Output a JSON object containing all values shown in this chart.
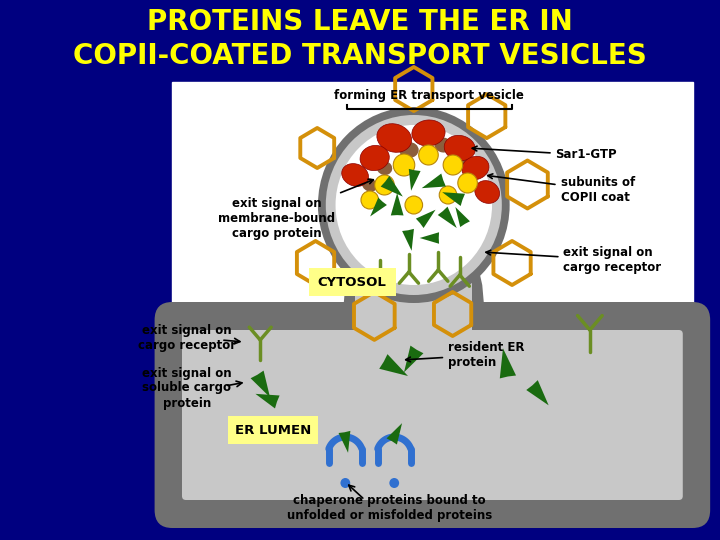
{
  "title_line1": "PROTEINS LEAVE THE ER IN",
  "title_line2": "COPII-COATED TRANSPORT VESICLES",
  "title_color": "#FFFF00",
  "bg_color": "#000080",
  "diagram_bg": "#FFFFFF",
  "title_fontsize": 20,
  "labels": {
    "forming_vesicle": "forming ER transport vesicle",
    "sar1_gtp": "Sar1-GTP",
    "exit_signal_membrane": "exit signal on\nmembrane-bound\ncargo protein",
    "cytosol": "CYTOSOL",
    "exit_signal_cargo_receptor_left": "exit signal on\ncargo receptor",
    "exit_signal_soluble": "exit signal on\nsoluble cargo\nprotein",
    "er_lumen": "ER LUMEN",
    "subunits_copii": "subunits of\nCOPII coat",
    "exit_signal_cargo_receptor_right": "exit signal on\ncargo receptor",
    "resident_er": "resident ER\nprotein",
    "chaperone": "chaperone proteins bound to\nunfolded or misfolded proteins"
  },
  "colors": {
    "er_membrane": "#707070",
    "er_lumen_fill": "#C8C8C8",
    "copii_coat": "#D4900A",
    "sar1_red": "#CC2200",
    "sar1_brown": "#8B5E3C",
    "cargo_green_dark": "#1A6B10",
    "cargo_green_med": "#2E8B22",
    "cargo_green_light": "#6B8E23",
    "yellow_ball": "#FFD700",
    "blue_chaperone": "#3070D0",
    "cytosol_label_bg": "#FFFF88",
    "er_lumen_label_bg": "#FFFF88",
    "white": "#FFFFFF",
    "black": "#000000"
  }
}
